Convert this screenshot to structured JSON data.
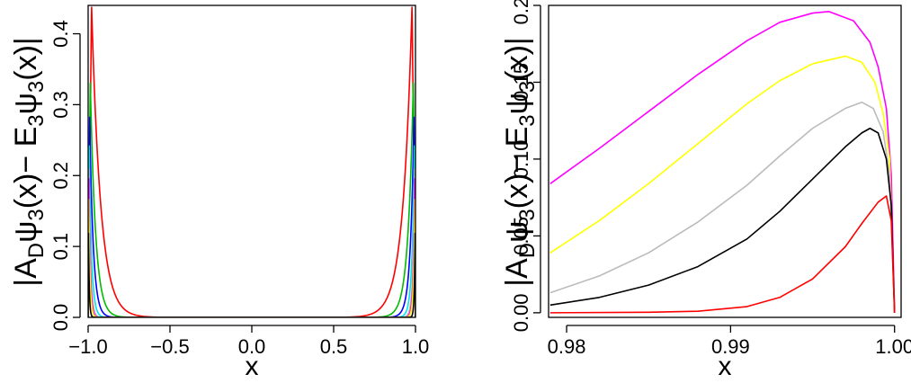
{
  "chart_data": [
    {
      "type": "line",
      "xlabel": "x",
      "ylabel_parts": [
        "|A",
        "D",
        "ψ",
        "3",
        "(x)− E",
        "3",
        "ψ",
        "3",
        "(x)|"
      ],
      "xlim": [
        -1.0,
        1.0
      ],
      "ylim": [
        0.0,
        0.44
      ],
      "xticks": [
        "-1.0",
        "-0.5",
        "0.0",
        "0.5",
        "1.0"
      ],
      "xtick_values": [
        -1.0,
        -0.5,
        0.0,
        0.5,
        1.0
      ],
      "yticks": [
        "0.0",
        "0.1",
        "0.2",
        "0.3",
        "0.4"
      ],
      "ytick_values": [
        0.0,
        0.1,
        0.2,
        0.3,
        0.4
      ],
      "series": [
        {
          "color": "#ff0000",
          "peak_x": 0.979,
          "peak_y": 0.44,
          "width": 0.055
        },
        {
          "color": "#00bb00",
          "peak_x": 0.987,
          "peak_y": 0.333,
          "width": 0.032
        },
        {
          "color": "#0000ff",
          "peak_x": 0.991,
          "peak_y": 0.284,
          "width": 0.022
        },
        {
          "color": "#00e5ee",
          "peak_x": 0.994,
          "peak_y": 0.242,
          "width": 0.015
        },
        {
          "color": "#bbbbbb",
          "peak_x": 0.996,
          "peak_y": 0.21,
          "width": 0.011
        },
        {
          "color": "#ff00ff",
          "peak_x": 0.996,
          "peak_y": 0.196,
          "width": 0.009
        },
        {
          "color": "#ffff00",
          "peak_x": 0.997,
          "peak_y": 0.168,
          "width": 0.008
        },
        {
          "color": "#000000",
          "peak_x": 0.998,
          "peak_y": 0.12,
          "width": 0.005
        }
      ]
    },
    {
      "type": "line",
      "xlabel": "x",
      "ylabel_parts": [
        "|A",
        "D",
        "ψ",
        "3",
        "(x)− E",
        "3",
        "ψ",
        "3",
        "(x)|"
      ],
      "xlim": [
        0.9789,
        1.0004
      ],
      "ylim": [
        -0.003,
        0.2
      ],
      "xticks": [
        "0.98",
        "0.99",
        "1.00"
      ],
      "xtick_values": [
        0.98,
        0.99,
        1.0
      ],
      "yticks": [
        "0.00",
        "0.05",
        "0.10",
        "0.15",
        "0.20"
      ],
      "ytick_values": [
        0.0,
        0.05,
        0.1,
        0.15,
        0.2
      ],
      "series": [
        {
          "color": "#ff00ff",
          "points": [
            [
              0.979,
              0.084
            ],
            [
              0.982,
              0.107
            ],
            [
              0.985,
              0.131
            ],
            [
              0.988,
              0.155
            ],
            [
              0.991,
              0.177
            ],
            [
              0.993,
              0.189
            ],
            [
              0.995,
              0.195
            ],
            [
              0.996,
              0.196
            ],
            [
              0.9975,
              0.19
            ],
            [
              0.9985,
              0.176
            ],
            [
              0.999,
              0.16
            ],
            [
              0.9995,
              0.133
            ],
            [
              0.9998,
              0.09
            ],
            [
              1.0,
              0.0
            ]
          ]
        },
        {
          "color": "#ffff00",
          "points": [
            [
              0.979,
              0.039
            ],
            [
              0.982,
              0.06
            ],
            [
              0.985,
              0.084
            ],
            [
              0.988,
              0.11
            ],
            [
              0.991,
              0.136
            ],
            [
              0.993,
              0.151
            ],
            [
              0.995,
              0.162
            ],
            [
              0.997,
              0.167
            ],
            [
              0.998,
              0.163
            ],
            [
              0.9988,
              0.15
            ],
            [
              0.9993,
              0.13
            ],
            [
              0.9997,
              0.1
            ],
            [
              1.0,
              0.0
            ]
          ]
        },
        {
          "color": "#bbbbbb",
          "points": [
            [
              0.979,
              0.013
            ],
            [
              0.982,
              0.024
            ],
            [
              0.985,
              0.039
            ],
            [
              0.988,
              0.059
            ],
            [
              0.991,
              0.083
            ],
            [
              0.993,
              0.102
            ],
            [
              0.995,
              0.12
            ],
            [
              0.997,
              0.133
            ],
            [
              0.998,
              0.137
            ],
            [
              0.9987,
              0.133
            ],
            [
              0.9993,
              0.118
            ],
            [
              0.9997,
              0.09
            ],
            [
              1.0,
              0.0
            ]
          ]
        },
        {
          "color": "#000000",
          "points": [
            [
              0.979,
              0.005
            ],
            [
              0.982,
              0.01
            ],
            [
              0.985,
              0.018
            ],
            [
              0.988,
              0.03
            ],
            [
              0.991,
              0.048
            ],
            [
              0.993,
              0.066
            ],
            [
              0.995,
              0.087
            ],
            [
              0.997,
              0.108
            ],
            [
              0.998,
              0.117
            ],
            [
              0.9985,
              0.12
            ],
            [
              0.999,
              0.117
            ],
            [
              0.9995,
              0.1
            ],
            [
              0.9998,
              0.07
            ],
            [
              1.0,
              0.0
            ]
          ]
        },
        {
          "color": "#ff0000",
          "points": [
            [
              0.979,
              0.0
            ],
            [
              0.985,
              0.0003
            ],
            [
              0.988,
              0.001
            ],
            [
              0.991,
              0.004
            ],
            [
              0.993,
              0.01
            ],
            [
              0.995,
              0.022
            ],
            [
              0.997,
              0.043
            ],
            [
              0.998,
              0.058
            ],
            [
              0.999,
              0.072
            ],
            [
              0.9995,
              0.076
            ],
            [
              0.9998,
              0.06
            ],
            [
              1.0,
              0.0
            ]
          ]
        }
      ]
    }
  ]
}
